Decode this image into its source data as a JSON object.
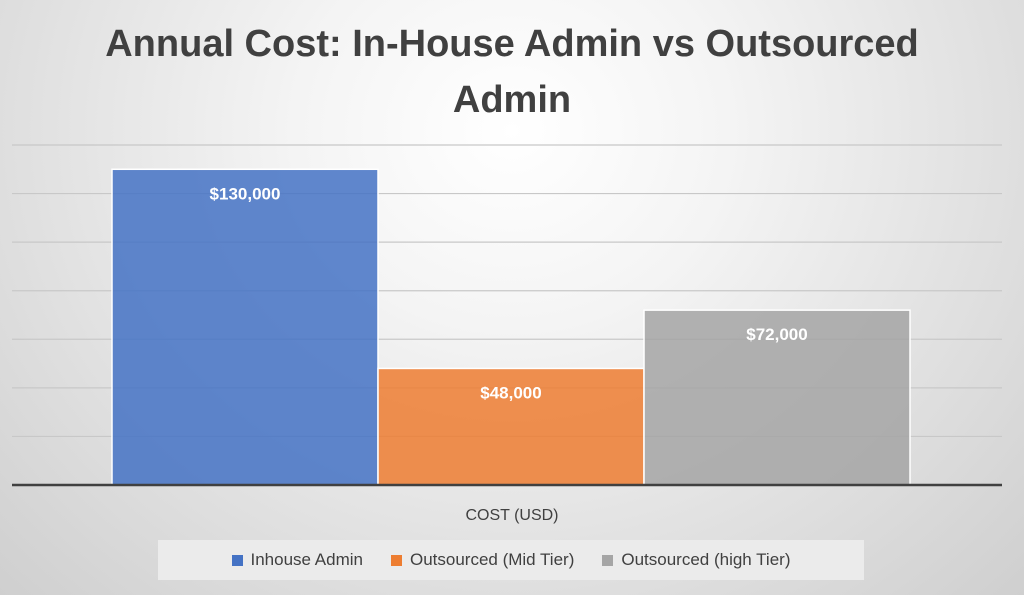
{
  "chart_data": {
    "type": "bar",
    "title": "Annual Cost: In-House Admin vs Outsourced Admin",
    "xlabel": "COST (USD)",
    "ylabel": "",
    "categories": [
      "COST (USD)"
    ],
    "series": [
      {
        "name": "Inhouse Admin",
        "values": [
          130000
        ],
        "label": "$130,000",
        "color": "#4472C4"
      },
      {
        "name": "Outsourced (Mid Tier)",
        "values": [
          48000
        ],
        "label": "$48,000",
        "color": "#ED7D31"
      },
      {
        "name": "Outsourced (high Tier)",
        "values": [
          72000
        ],
        "label": "$72,000",
        "color": "#A5A5A5"
      }
    ],
    "ylim": [
      0,
      140000
    ],
    "grid": true,
    "legend": "bottom"
  }
}
